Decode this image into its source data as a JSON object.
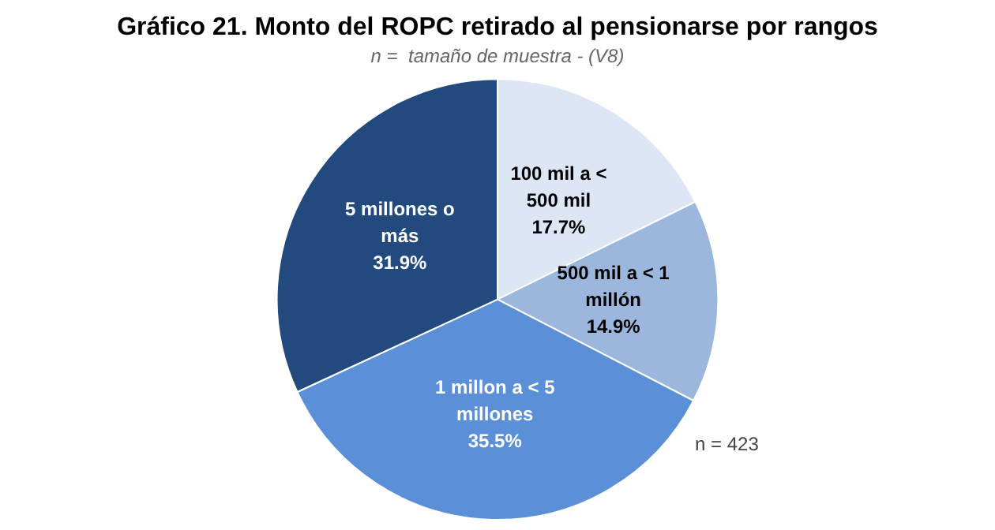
{
  "chart_data": {
    "type": "pie",
    "title": "Gráfico 21. Monto del ROPC retirado al pensionarse por rangos",
    "subtitle": "n =  tamaño de muestra - (V8)",
    "categories": [
      "100 mil a < 500 mil",
      "500 mil a < 1 millón",
      "1 millon a < 5 millones",
      "5 millones o más"
    ],
    "values": [
      17.7,
      14.9,
      35.5,
      31.9
    ],
    "value_labels": [
      "17.7%",
      "14.9%",
      "35.5%",
      "31.9%"
    ],
    "colors": [
      "#dce6f5",
      "#9bb7dd",
      "#5b8fd7",
      "#234a7e"
    ],
    "legend": false,
    "annotations": [
      "n = 423"
    ]
  }
}
